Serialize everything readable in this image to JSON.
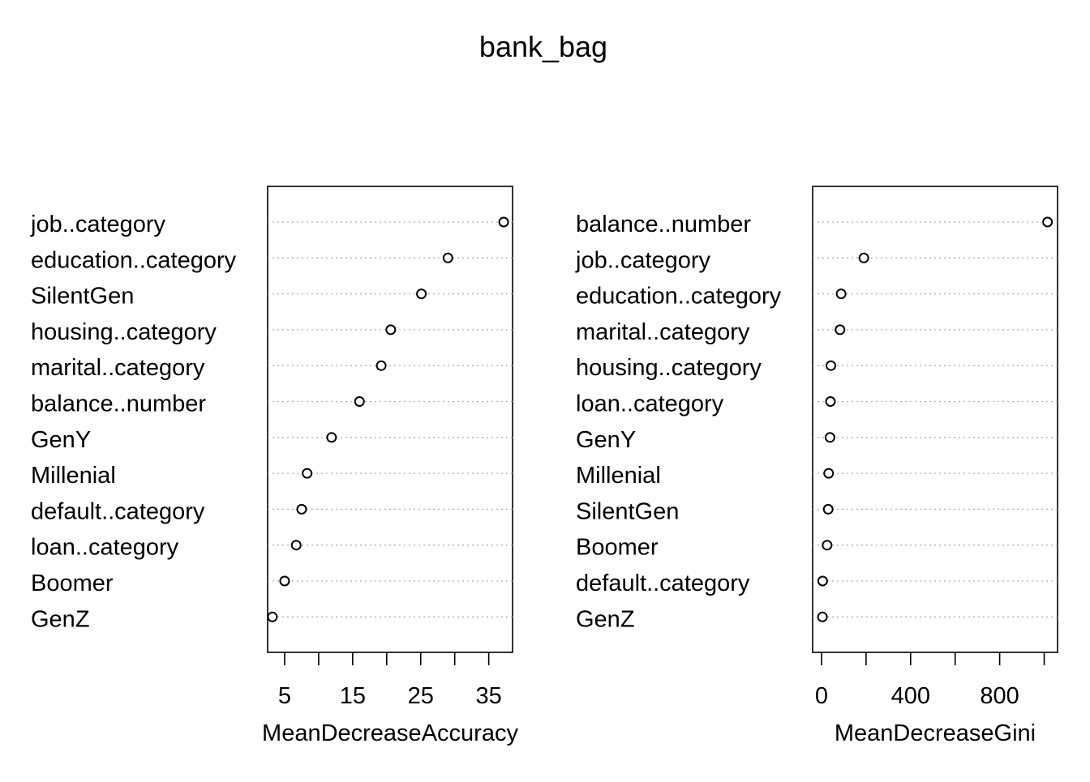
{
  "title": "bank_bag",
  "chart_data": [
    {
      "type": "scatter",
      "subtype": "dotchart",
      "xlabel": "MeanDecreaseAccuracy",
      "xlim": [
        2.5,
        38.5
      ],
      "ticks": [
        5,
        10,
        15,
        20,
        25,
        30,
        35
      ],
      "tick_labels": [
        "5",
        "15",
        "25",
        "35"
      ],
      "tick_label_values": [
        5,
        15,
        25,
        35
      ],
      "grid": "dotted horizontal",
      "categories": [
        "job..category",
        "education..category",
        "SilentGen",
        "housing..category",
        "marital..category",
        "balance..number",
        "GenY",
        "Millenial",
        "default..category",
        "loan..category",
        "Boomer",
        "GenZ"
      ],
      "values": [
        37.2,
        29.0,
        25.1,
        20.6,
        19.2,
        16.0,
        11.9,
        8.3,
        7.5,
        6.7,
        5.0,
        3.2
      ]
    },
    {
      "type": "scatter",
      "subtype": "dotchart",
      "xlabel": "MeanDecreaseGini",
      "xlim": [
        -40,
        1060
      ],
      "ticks": [
        0,
        200,
        400,
        600,
        800,
        1000
      ],
      "tick_labels": [
        "0",
        "400",
        "800"
      ],
      "tick_label_values": [
        0,
        400,
        800
      ],
      "grid": "dotted horizontal",
      "categories": [
        "balance..number",
        "job..category",
        "education..category",
        "marital..category",
        "housing..category",
        "loan..category",
        "GenY",
        "Millenial",
        "SilentGen",
        "Boomer",
        "default..category",
        "GenZ"
      ],
      "values": [
        1015,
        190,
        88,
        83,
        42,
        40,
        38,
        32,
        30,
        25,
        5,
        4
      ]
    }
  ]
}
